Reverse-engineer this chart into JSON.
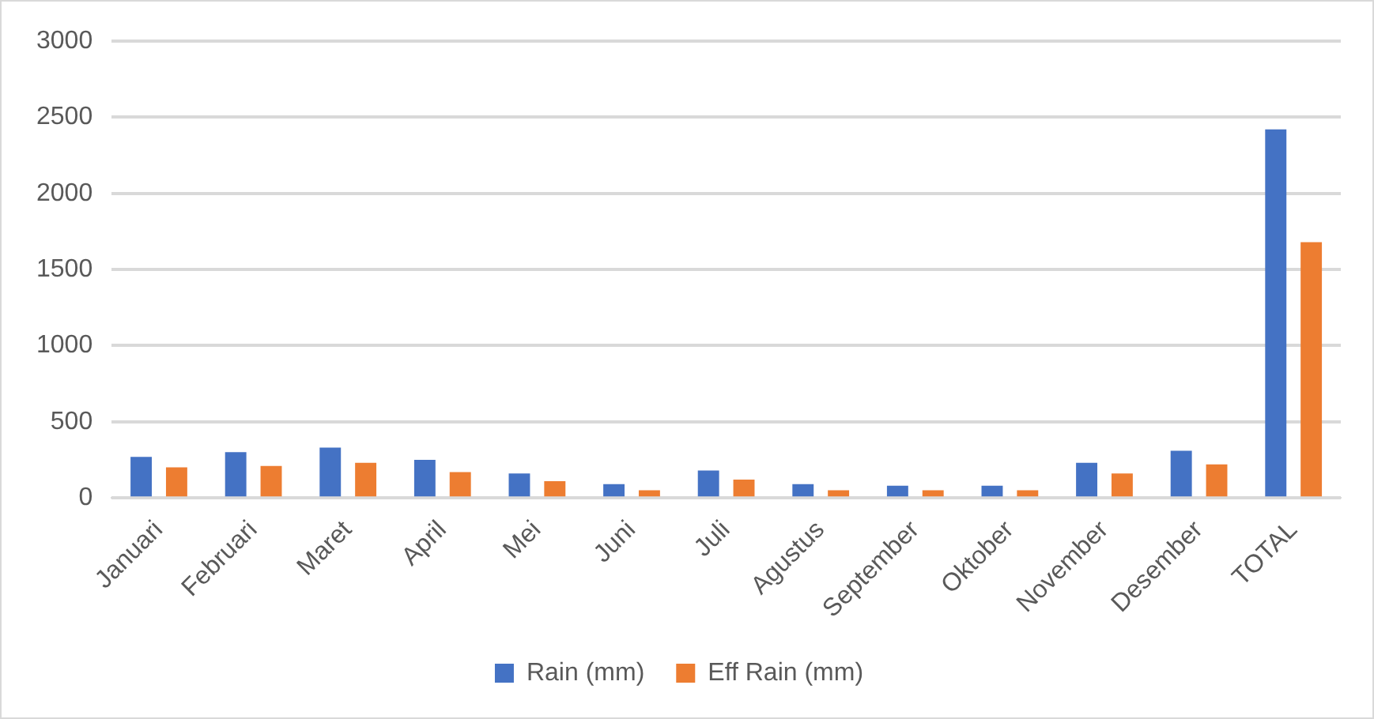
{
  "chart_data": {
    "type": "bar",
    "categories": [
      "Januari",
      "Februari",
      "Maret",
      "April",
      "Mei",
      "Juni",
      "Juli",
      "Agustus",
      "September",
      "Oktober",
      "November",
      "Desember",
      "TOTAL"
    ],
    "series": [
      {
        "name": "Rain (mm)",
        "color": "#4472c4",
        "values": [
          270,
          300,
          330,
          250,
          160,
          90,
          180,
          90,
          80,
          80,
          230,
          310,
          2420
        ]
      },
      {
        "name": "Eff Rain (mm)",
        "color": "#ed7d31",
        "values": [
          200,
          210,
          230,
          170,
          110,
          50,
          120,
          50,
          50,
          50,
          160,
          220,
          1680
        ]
      }
    ],
    "ylim": [
      0,
      3000
    ],
    "yticks": [
      0,
      500,
      1000,
      1500,
      2000,
      2500,
      3000
    ],
    "grid": "y",
    "legend": "bottom"
  }
}
